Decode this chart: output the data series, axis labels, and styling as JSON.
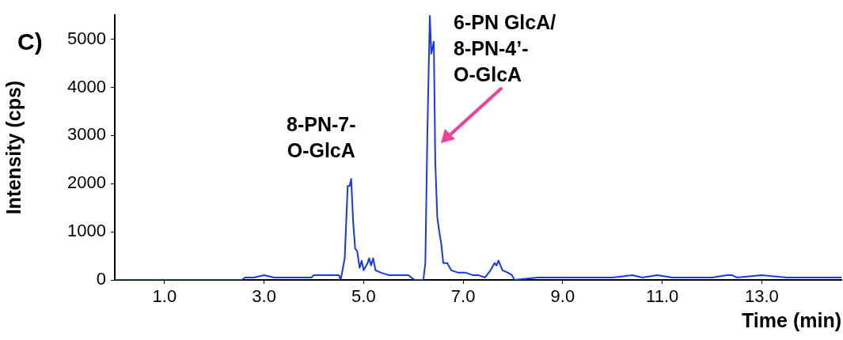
{
  "chart_data": {
    "type": "line",
    "xlabel": "Time (min)",
    "ylabel": "Intensity (cps)",
    "annotations": [
      "C)",
      "8-PN-7-\nO-GlcA",
      "6-PN GlcA/\n8-PN-4’-\nO-GlcA"
    ],
    "xlim": [
      0,
      14.6
    ],
    "ylim": [
      0,
      5500
    ],
    "xticks": [
      {
        "value": 1,
        "label": "1.0"
      },
      {
        "value": 3,
        "label": "3.0"
      },
      {
        "value": 5,
        "label": "5.0"
      },
      {
        "value": 7,
        "label": "7.0"
      },
      {
        "value": 9,
        "label": "9.0"
      },
      {
        "value": 11,
        "label": "11.0"
      },
      {
        "value": 13,
        "label": "13.0"
      }
    ],
    "yticks": [
      0,
      1000,
      2000,
      3000,
      4000,
      5000
    ],
    "grid": false,
    "legend": false,
    "marker": "none",
    "line_style": "solid",
    "series": [
      {
        "color": "#1538f5",
        "x": [
          0,
          1,
          2,
          2.55,
          2.62,
          2.8,
          3.0,
          3.2,
          3.5,
          3.8,
          3.95,
          4.0,
          4.2,
          4.4,
          4.5,
          4.54,
          4.62,
          4.68,
          4.72,
          4.75,
          4.79,
          4.83,
          4.87,
          4.92,
          4.96,
          5.0,
          5.08,
          5.11,
          5.15,
          5.19,
          5.24,
          5.35,
          5.5,
          5.65,
          5.8,
          5.9,
          6.02,
          6.2,
          6.24,
          6.28,
          6.33,
          6.36,
          6.41,
          6.44,
          6.48,
          6.52,
          6.56,
          6.6,
          6.68,
          6.76,
          6.9,
          7.05,
          7.19,
          7.3,
          7.44,
          7.55,
          7.63,
          7.67,
          7.71,
          7.79,
          7.9,
          7.98,
          8.03,
          8.5,
          9.0,
          9.5,
          10.0,
          10.4,
          10.6,
          10.9,
          11.2,
          11.6,
          12.0,
          12.3,
          12.4,
          12.5,
          13.0,
          13.5,
          14.0,
          14.6
        ],
        "values": [
          0,
          0,
          0,
          0,
          50,
          50,
          100,
          50,
          50,
          50,
          50,
          100,
          100,
          100,
          100,
          0,
          450,
          1950,
          1950,
          2100,
          1200,
          650,
          600,
          250,
          400,
          200,
          350,
          450,
          300,
          450,
          200,
          150,
          100,
          100,
          100,
          100,
          0,
          0,
          350,
          3000,
          5500,
          4700,
          4950,
          2450,
          1300,
          1000,
          750,
          350,
          350,
          200,
          150,
          150,
          100,
          100,
          50,
          200,
          350,
          300,
          400,
          200,
          150,
          100,
          0,
          50,
          50,
          50,
          50,
          100,
          50,
          100,
          50,
          50,
          50,
          100,
          100,
          50,
          100,
          50,
          50,
          50
        ]
      }
    ]
  }
}
